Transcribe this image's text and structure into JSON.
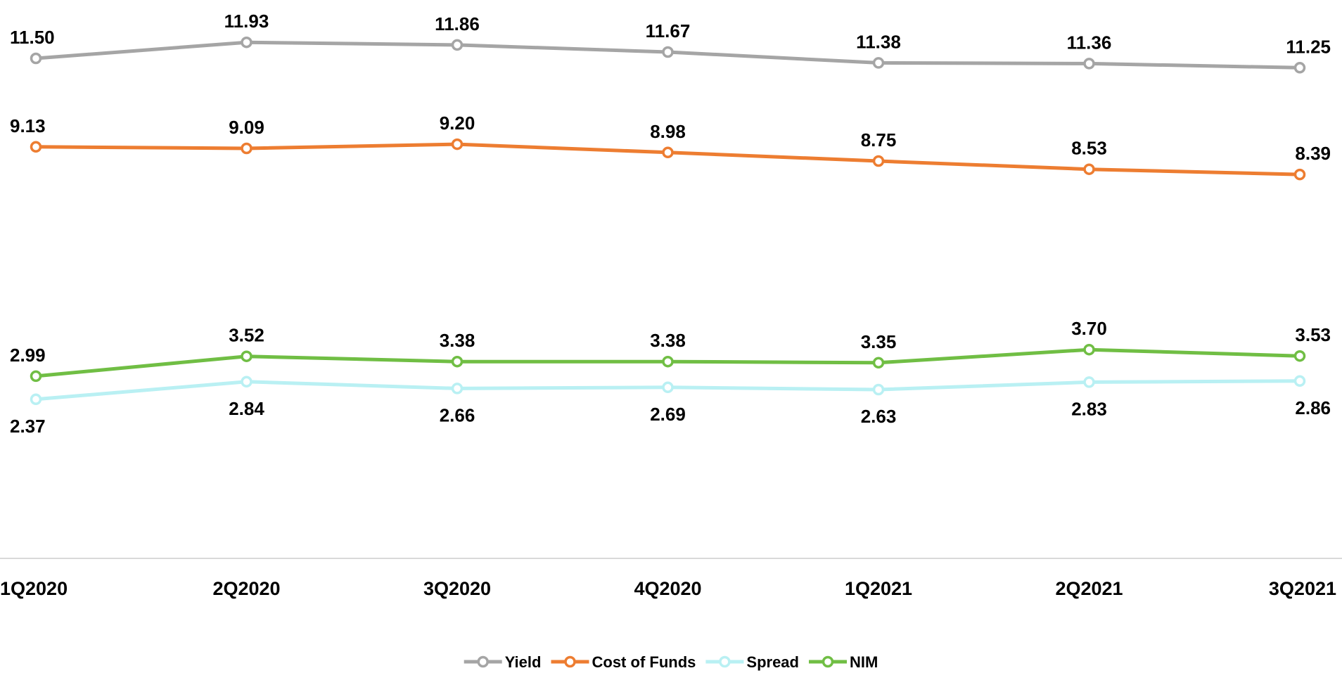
{
  "chart_data": {
    "type": "line",
    "categories": [
      "1Q2020",
      "2Q2020",
      "3Q2020",
      "4Q2020",
      "1Q2021",
      "2Q2021",
      "3Q2021"
    ],
    "series": [
      {
        "name": "Yield",
        "color": "#A5A5A5",
        "values": [
          11.5,
          11.93,
          11.86,
          11.67,
          11.38,
          11.36,
          11.25
        ],
        "labels": [
          "11.50",
          "11.93",
          "11.86",
          "11.67",
          "11.38",
          "11.36",
          "11.25"
        ],
        "label_position": "above"
      },
      {
        "name": "Cost of Funds",
        "color": "#ED7D31",
        "values": [
          9.13,
          9.09,
          9.2,
          8.98,
          8.75,
          8.53,
          8.39
        ],
        "labels": [
          "9.13",
          "9.09",
          "9.20",
          "8.98",
          "8.75",
          "8.53",
          "8.39"
        ],
        "label_position": "above"
      },
      {
        "name": "Spread",
        "color": "#B9F0F3",
        "values": [
          2.37,
          2.84,
          2.66,
          2.69,
          2.63,
          2.83,
          2.86
        ],
        "labels": [
          "2.37",
          "2.84",
          "2.66",
          "2.69",
          "2.63",
          "2.83",
          "2.86"
        ],
        "label_position": "below"
      },
      {
        "name": "NIM",
        "color": "#70BE44",
        "values": [
          2.99,
          3.52,
          3.38,
          3.38,
          3.35,
          3.7,
          3.53
        ],
        "labels": [
          "2.99",
          "3.52",
          "3.38",
          "3.38",
          "3.35",
          "3.70",
          "3.53"
        ],
        "label_position": "above"
      }
    ],
    "title": "",
    "xlabel": "",
    "ylabel": "",
    "grid": false,
    "legend": "bottom"
  }
}
